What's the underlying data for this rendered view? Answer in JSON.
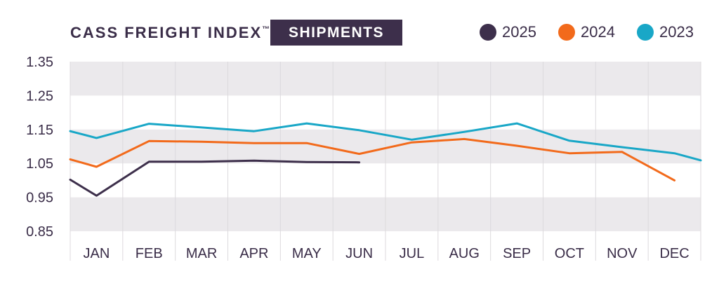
{
  "title": "CASS FREIGHT INDEX",
  "trademark": "™",
  "badge": "SHIPMENTS",
  "colors": {
    "2025": "#3d2f4b",
    "2024": "#f26a1b",
    "2023": "#19a7c7",
    "band": "#ebe9ec",
    "grid": "#dcdadd"
  },
  "legend": [
    {
      "label": "2025",
      "color": "#3d2f4b"
    },
    {
      "label": "2024",
      "color": "#f26a1b"
    },
    {
      "label": "2023",
      "color": "#19a7c7"
    }
  ],
  "chart_data": {
    "type": "line",
    "categories": [
      "JAN",
      "FEB",
      "MAR",
      "APR",
      "MAY",
      "JUN",
      "JUL",
      "AUG",
      "SEP",
      "OCT",
      "NOV",
      "DEC"
    ],
    "y_ticks": [
      "1.35",
      "1.25",
      "1.15",
      "1.05",
      "0.95",
      "0.85"
    ],
    "ylim": [
      0.85,
      1.35
    ],
    "series": [
      {
        "name": "2025",
        "x": [
          0,
          0.5,
          1.5,
          2.5,
          3.5,
          4.5,
          5.5
        ],
        "values": [
          1.002,
          0.955,
          1.055,
          1.055,
          1.058,
          1.054,
          1.053
        ]
      },
      {
        "name": "2024",
        "x": [
          0,
          0.5,
          1.5,
          2.5,
          3.5,
          4.5,
          5.5,
          6.5,
          7.5,
          8.5,
          9.5,
          10.5,
          11.5
        ],
        "values": [
          1.062,
          1.04,
          1.116,
          1.114,
          1.11,
          1.11,
          1.078,
          1.112,
          1.122,
          1.102,
          1.08,
          1.084,
          1.0
        ]
      },
      {
        "name": "2023",
        "x": [
          0,
          0.5,
          1.5,
          2.5,
          3.5,
          4.5,
          5.5,
          6.5,
          7.5,
          8.5,
          9.5,
          10.5,
          11.5,
          12
        ],
        "values": [
          1.145,
          1.125,
          1.167,
          1.156,
          1.145,
          1.168,
          1.148,
          1.12,
          1.143,
          1.168,
          1.117,
          1.098,
          1.08,
          1.059
        ]
      }
    ]
  }
}
